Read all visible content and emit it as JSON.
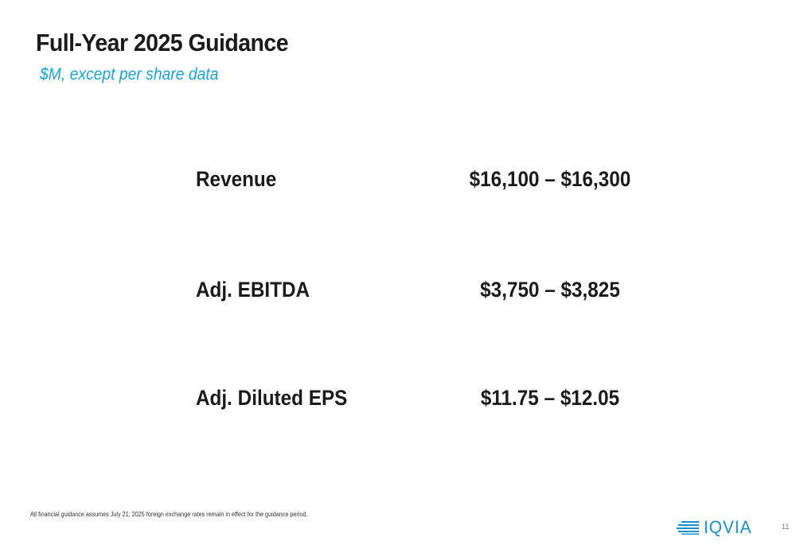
{
  "slide": {
    "title": "Full-Year 2025 Guidance",
    "subtitle": "$M, except per share data",
    "guidance": [
      {
        "label": "Revenue",
        "value": "$16,100 – $16,300"
      },
      {
        "label": "Adj. EBITDA",
        "value": "$3,750 – $3,825"
      },
      {
        "label": "Adj. Diluted EPS",
        "value": "$11.75 – $12.05"
      }
    ],
    "footnote": "All financial guidance assumes July 21, 2025 foreign exchange rates remain in effect for the guidance period.",
    "page_number": "11",
    "logo_text": "IQVIA"
  },
  "colors": {
    "accent": "#1aa3d9",
    "brand": "#1a8fc9",
    "text": "#1b1b1b"
  },
  "icons": {
    "logo_mark": "iqvia-stripes-icon"
  }
}
